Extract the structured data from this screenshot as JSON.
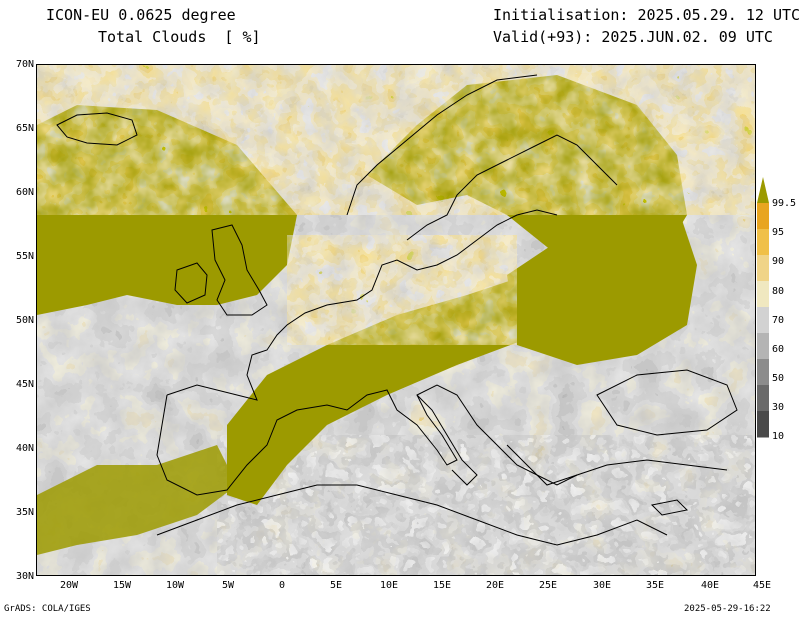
{
  "header": {
    "model": "ICON-EU 0.0625 degree",
    "variable": "Total Clouds  [ %]",
    "initialisation": "Initialisation: 2025.05.29. 12 UTC",
    "valid": "Valid(+93): 2025.JUN.02. 09 UTC"
  },
  "map": {
    "lat_labels": [
      "70N",
      "65N",
      "60N",
      "55N",
      "50N",
      "45N",
      "40N",
      "35N",
      "30N"
    ],
    "lon_labels": [
      "20W",
      "15W",
      "10W",
      "5W",
      "0",
      "5E",
      "10E",
      "15E",
      "20E",
      "25E",
      "30E",
      "35E",
      "40E",
      "45E"
    ],
    "extent": {
      "lon_min": -23,
      "lon_max": 45,
      "lat_min": 30,
      "lat_max": 70
    }
  },
  "legend": {
    "levels": [
      "99.5",
      "95",
      "90",
      "80",
      "70",
      "60",
      "50",
      "30",
      "10"
    ],
    "colors": [
      "#9c9a00",
      "#e8a520",
      "#f0c048",
      "#f0d488",
      "#f0e8c0",
      "#d2d2d2",
      "#b4b4b4",
      "#8c8c8c",
      "#6a6a6a",
      "#4a4a4a"
    ]
  },
  "footer": {
    "software": "GrADS: COLA/IGES",
    "timestamp": "2025-05-29-16:22"
  }
}
